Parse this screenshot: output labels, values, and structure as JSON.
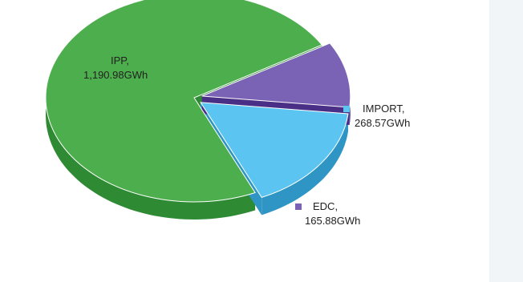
{
  "chart_data": {
    "type": "pie",
    "style": "3d-exploded",
    "slices": [
      {
        "name": "IPP,",
        "value": 1190.98,
        "label": "1,190.98GWh",
        "color": "#4cae4c",
        "side_color": "#2f8a34",
        "legend_marker": false
      },
      {
        "name": "IMPORT,",
        "value": 268.57,
        "label": "268.57GWh",
        "color": "#5bc4f0",
        "side_color": "#2f95c4",
        "legend_marker": true
      },
      {
        "name": "EDC,",
        "value": 165.88,
        "label": "165.88GWh",
        "color": "#7a62b5",
        "side_color": "#4a2f86",
        "legend_marker": true
      }
    ]
  }
}
